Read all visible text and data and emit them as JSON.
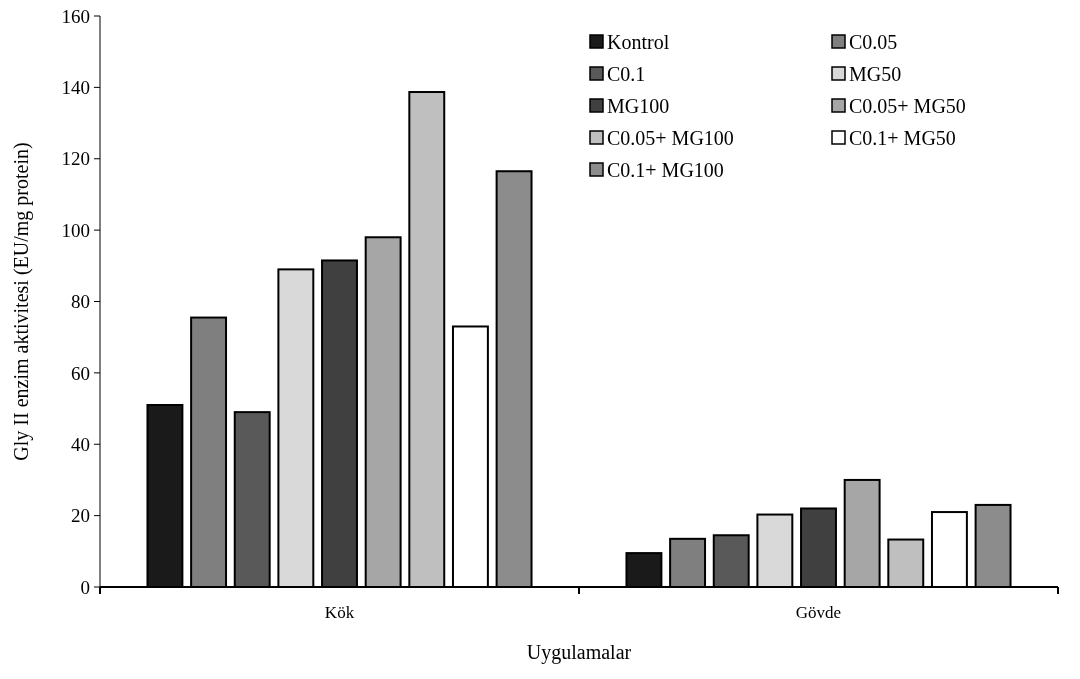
{
  "chart_data": {
    "type": "bar",
    "xlabel": "Uygulamalar",
    "ylabel": "Gly II enzim aktivitesi (EU/mg protein)",
    "categories": [
      "Kök",
      "Gövde"
    ],
    "ylim": [
      0,
      160
    ],
    "yticks": [
      0,
      20,
      40,
      60,
      80,
      100,
      120,
      140,
      160
    ],
    "grid": false,
    "legend": "top right",
    "series": [
      {
        "name": "Kontrol",
        "color": "#1a1a1a",
        "values": [
          51,
          9.5
        ]
      },
      {
        "name": "C0.05",
        "color": "#7f7f7f",
        "values": [
          75.5,
          13.5
        ]
      },
      {
        "name": "C0.1",
        "color": "#595959",
        "values": [
          49,
          14.5
        ]
      },
      {
        "name": "MG50",
        "color": "#d9d9d9",
        "values": [
          89,
          20.3
        ]
      },
      {
        "name": "MG100",
        "color": "#404040",
        "values": [
          91.5,
          22
        ]
      },
      {
        "name": "C0.05+ MG50",
        "color": "#a6a6a6",
        "values": [
          98,
          30
        ]
      },
      {
        "name": "C0.05+ MG100",
        "color": "#bfbfbf",
        "values": [
          138.7,
          13.3
        ]
      },
      {
        "name": "C0.1+ MG50",
        "color": "#ffffff",
        "values": [
          73,
          21
        ]
      },
      {
        "name": "C0.1+ MG100",
        "color": "#8c8c8c",
        "values": [
          116.5,
          23
        ]
      }
    ]
  }
}
